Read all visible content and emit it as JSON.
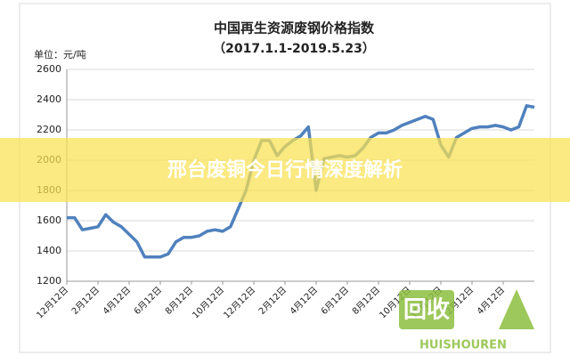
{
  "chart_data": {
    "type": "line",
    "title": "中国再生资源废钢价格指数",
    "subtitle": "（2017.1.1-2019.5.23）",
    "y_label": "单位：元/吨",
    "categories": [
      "12月12日",
      null,
      null,
      null,
      "2月12日",
      null,
      null,
      null,
      "4月12日",
      null,
      null,
      null,
      "6月12日",
      null,
      null,
      null,
      "8月12日",
      null,
      null,
      null,
      "10月12日",
      null,
      null,
      null,
      "12月12日",
      null,
      null,
      null,
      "2月12日",
      null,
      null,
      null,
      "4月12日",
      null,
      null,
      null,
      "6月12日",
      null,
      null,
      null,
      "8月12日",
      null,
      null,
      null,
      "10月12日",
      null,
      null,
      null,
      "12月12日",
      null,
      null,
      null,
      "2月12日",
      null,
      null,
      null,
      "4月12日",
      null,
      null,
      null,
      null
    ],
    "values": [
      1620,
      1620,
      1540,
      1550,
      1560,
      1640,
      1590,
      1560,
      1510,
      1460,
      1360,
      1360,
      1360,
      1380,
      1460,
      1490,
      1490,
      1500,
      1530,
      1540,
      1530,
      1560,
      1680,
      1800,
      2000,
      2130,
      2130,
      2030,
      2090,
      2130,
      2160,
      2220,
      1800,
      2010,
      2020,
      2030,
      2020,
      2030,
      2080,
      2150,
      2180,
      2180,
      2200,
      2230,
      2250,
      2270,
      2290,
      2270,
      2100,
      2020,
      2150,
      2180,
      2210,
      2220,
      2220,
      2230,
      2220,
      2200,
      2220,
      2360,
      2350
    ],
    "color": "#4f81bd",
    "ylim": [
      1200,
      2600
    ],
    "yticks": [
      1200,
      1400,
      1600,
      1800,
      2000,
      2200,
      2400,
      2600
    ],
    "grid": true
  },
  "banner": {
    "text": "邢台废铜今日行情深度解析"
  },
  "watermark": {
    "logo": "回收",
    "text": "HUISHOUREN"
  }
}
